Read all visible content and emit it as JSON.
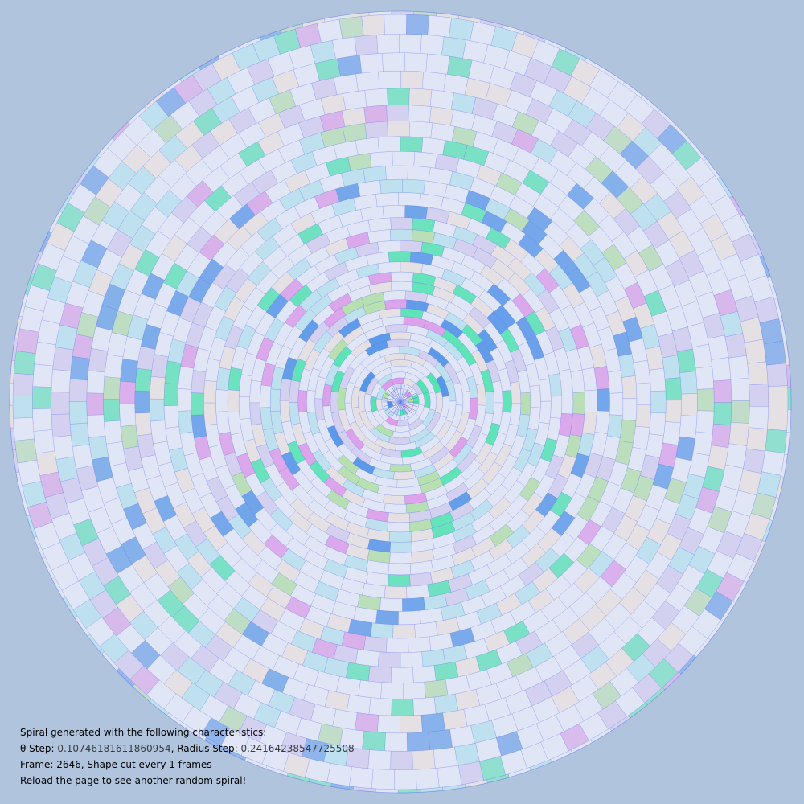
{
  "page": {
    "background_color": "#b0c4de",
    "line_color": "#5a6ee8",
    "fill_palette": [
      "#3a86e8",
      "#2ee8a0",
      "#e87ae8",
      "#9ee86e",
      "#a8e8f0",
      "#ffe8d8",
      "#d8c8f0",
      "#f0f0ff"
    ]
  },
  "spiral": {
    "theta_step": 0.10746181611860954,
    "radius_step": 0.24164238547725508,
    "frame": 2646,
    "cut_every": 1
  },
  "info": {
    "line1": "Spiral generated with the following characteristics:",
    "theta_label": "θ Step: ",
    "theta_value": "0.10746181611860954",
    "radius_label": ", Radius Step: ",
    "radius_value": "0.24164238547725508",
    "frame_line": "Frame: 2646, Shape cut every 1 frames",
    "reload_line": "Reload the page to see another random spiral!"
  }
}
